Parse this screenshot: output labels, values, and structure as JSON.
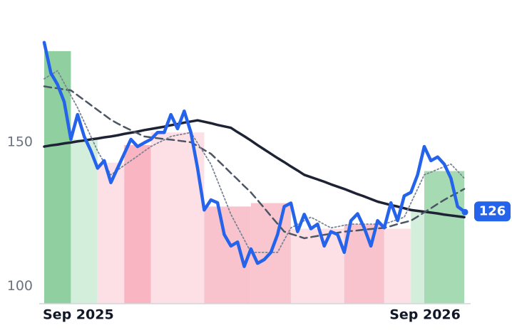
{
  "chart_data": {
    "type": "line",
    "categories": [
      "Sep 2025",
      null,
      null,
      null,
      null,
      null,
      null,
      null,
      null,
      null,
      null,
      null,
      null,
      null,
      null,
      null,
      null,
      null,
      null,
      null,
      null,
      null,
      null,
      null,
      null,
      null,
      null,
      null,
      null,
      null,
      null,
      null,
      null,
      null,
      null,
      null,
      null,
      null,
      null,
      null,
      null,
      null,
      null,
      null,
      null,
      null,
      null,
      null,
      null,
      null,
      null,
      null,
      "Sep 2026",
      null,
      null,
      null,
      null,
      null,
      null,
      null,
      null,
      null,
      null,
      null
    ],
    "series": [
      {
        "color": "#2563eb",
        "style": "solid",
        "width": 4.5,
        "values": [
          184.6,
          174,
          170,
          164,
          151,
          159.6,
          152,
          147,
          141,
          143.6,
          136,
          141,
          146,
          151,
          148.5,
          149.8,
          151,
          153.4,
          153.4,
          159.6,
          154.7,
          160.8,
          153.4,
          141,
          126.5,
          130,
          129,
          118,
          114,
          115.4,
          106.9,
          113,
          108,
          109.3,
          111.8,
          118,
          127.7,
          128.9,
          119,
          125,
          120,
          121.6,
          114,
          119,
          118,
          111.8,
          122.8,
          125.2,
          120.3,
          114,
          122.8,
          120.3,
          129,
          122.8,
          131.4,
          132.6,
          138.7,
          148.5,
          143.6,
          144.9,
          142.4,
          137.5,
          127.7,
          126
        ]
      },
      {
        "color": "#7b8494",
        "style": "dotted",
        "width": 1.8,
        "values": [
          172,
          173.4,
          174.8,
          170.5,
          166.2,
          162,
          157,
          152,
          147,
          142.9,
          138.7,
          140.3,
          142,
          143.6,
          145.2,
          146.9,
          148.5,
          149.7,
          150.8,
          152,
          152.5,
          152.9,
          153.4,
          149.7,
          146.1,
          142.4,
          136.6,
          130.8,
          125,
          120.6,
          116.2,
          111.8,
          111.8,
          111.8,
          111.8,
          111.8,
          116.1,
          120.3,
          121.5,
          122.8,
          124,
          122.8,
          121.5,
          120.3,
          120.7,
          121.2,
          121.6,
          121.6,
          121.6,
          121.6,
          121.6,
          121.6,
          122.4,
          123.2,
          124,
          128.9,
          133.8,
          138.7,
          139.6,
          140.6,
          141.5,
          142.4,
          140,
          137.5
        ]
      },
      {
        "color": "#4b5563",
        "style": "dashed",
        "width": 2.5,
        "values": [
          169.4,
          169,
          168.7,
          168.3,
          168,
          166.3,
          164.6,
          162.9,
          161.2,
          159.5,
          157.8,
          156.5,
          155.3,
          154.2,
          153.1,
          152,
          151.7,
          151.4,
          151.1,
          150.9,
          150.6,
          150.3,
          150,
          148.7,
          147.3,
          146,
          143.8,
          141.6,
          139.3,
          137.1,
          134.8,
          132.6,
          129.9,
          127.2,
          124.4,
          121.7,
          119,
          118.2,
          117.5,
          116.7,
          117.1,
          117.5,
          117.9,
          118.2,
          118.6,
          119,
          119.2,
          119.4,
          119.7,
          119.9,
          120.1,
          120.3,
          120.9,
          121.6,
          122.2,
          122.8,
          124.2,
          125.7,
          127.1,
          128.6,
          130,
          131.3,
          132.5,
          133.8
        ]
      },
      {
        "color": "#1e2235",
        "style": "solid",
        "width": 3.5,
        "values": [
          148.5,
          148.9,
          149.2,
          149.6,
          149.9,
          150.3,
          150.6,
          151,
          151.3,
          151.7,
          152,
          152.4,
          152.9,
          153.3,
          153.7,
          154.2,
          154.6,
          155,
          155.4,
          155.9,
          156.3,
          156.8,
          157.2,
          157.6,
          157.1,
          156.6,
          156,
          155.5,
          155,
          153.5,
          152.1,
          150.6,
          149,
          147.5,
          146,
          144.5,
          143.1,
          141.6,
          140.2,
          138.7,
          137.9,
          137.1,
          136.3,
          135.4,
          134.6,
          133.8,
          132.9,
          132,
          131.2,
          130.3,
          129.4,
          128.8,
          128.2,
          127.7,
          127.1,
          126.5,
          126.2,
          125.9,
          125.6,
          125.3,
          124.9,
          124.6,
          124.3,
          124
        ]
      }
    ],
    "bands": [
      {
        "from": 0,
        "to": 4,
        "value": 181.6,
        "color": "#8fcfa0"
      },
      {
        "from": 4,
        "to": 8,
        "value": 151,
        "color": "#d3eedb"
      },
      {
        "from": 8,
        "to": 12,
        "value": 142.9,
        "color": "#fde0e5"
      },
      {
        "from": 12,
        "to": 16,
        "value": 149,
        "color": "#f9b6c2"
      },
      {
        "from": 16,
        "to": 24,
        "value": 153.4,
        "color": "#fde0e5"
      },
      {
        "from": 24,
        "to": 31,
        "value": 127.7,
        "color": "#f8c3cc"
      },
      {
        "from": 31,
        "to": 37,
        "value": 128.9,
        "color": "#f9c6cf"
      },
      {
        "from": 37,
        "to": 45,
        "value": 120,
        "color": "#fde0e5"
      },
      {
        "from": 45,
        "to": 51,
        "value": 121.5,
        "color": "#f8c3cc"
      },
      {
        "from": 51,
        "to": 55,
        "value": 120,
        "color": "#fde0e5"
      },
      {
        "from": 55,
        "to": 57,
        "value": 126.5,
        "color": "#d3eedb"
      },
      {
        "from": 57,
        "to": 63,
        "value": 140,
        "color": "#a5dab3"
      }
    ],
    "ylim": [
      94,
      187
    ],
    "yticks": [
      100,
      150
    ],
    "grid": false
  }
}
